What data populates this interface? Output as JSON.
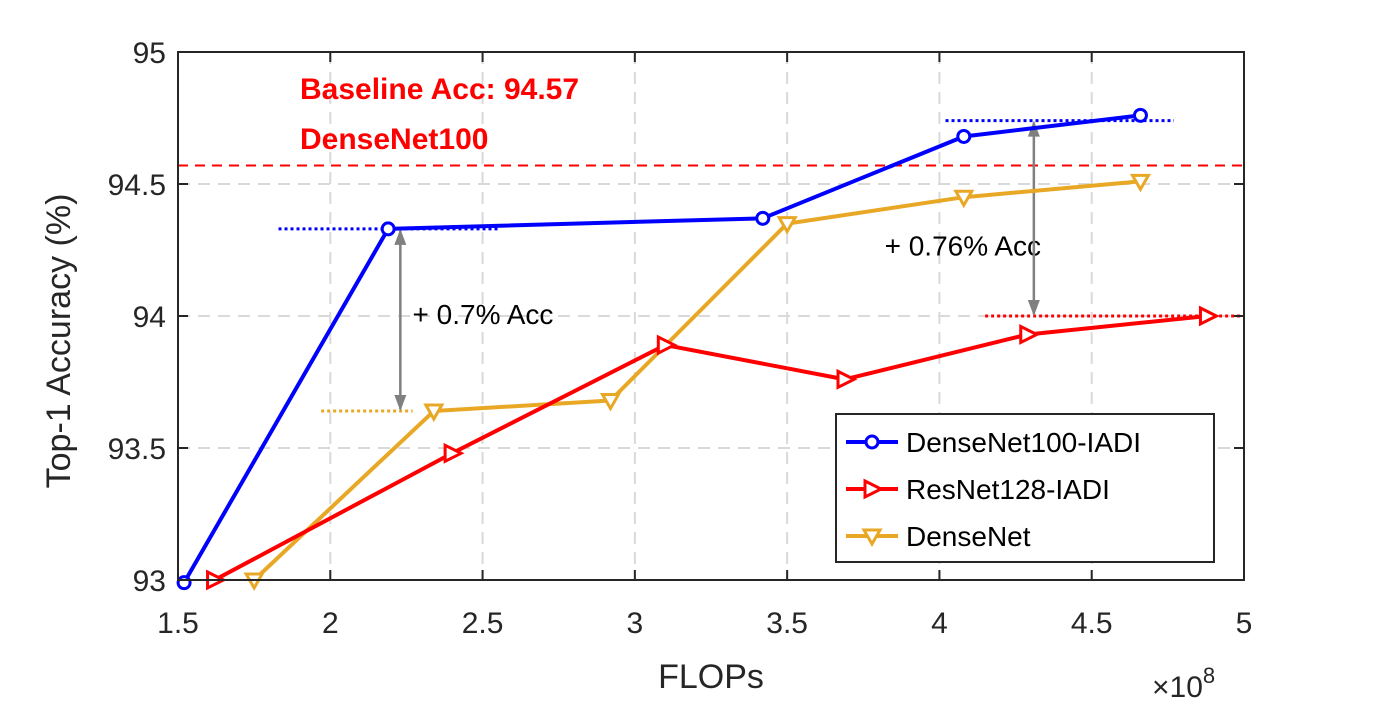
{
  "chart_data": {
    "type": "line",
    "xlabel": "FLOPs",
    "ylabel": "Top-1 Accuracy (%)",
    "x_multiplier_label": "×10",
    "x_multiplier_exponent": "8",
    "xlim": [
      1.5,
      5
    ],
    "ylim": [
      93,
      95
    ],
    "xticks": [
      "1.5",
      "2",
      "2.5",
      "3",
      "3.5",
      "4",
      "4.5",
      "5"
    ],
    "yticks": [
      "93",
      "93.5",
      "94",
      "94.5",
      "95"
    ],
    "xtick_values": [
      1.5,
      2,
      2.5,
      3,
      3.5,
      4,
      4.5,
      5
    ],
    "ytick_values": [
      93,
      93.5,
      94,
      94.5,
      95
    ],
    "grid": true,
    "legend_position": "bottom-right",
    "series": [
      {
        "name": "DenseNet100-IADI",
        "color": "#0000ff",
        "marker": "circle",
        "x": [
          1.52,
          2.19,
          3.42,
          4.08,
          4.66
        ],
        "y": [
          92.99,
          94.33,
          94.37,
          94.68,
          94.76
        ]
      },
      {
        "name": "ResNet128-IADI",
        "color": "#ff0000",
        "marker": "triangle-right",
        "x": [
          1.62,
          2.4,
          3.1,
          3.69,
          4.29,
          4.88
        ],
        "y": [
          93.0,
          93.48,
          93.89,
          93.76,
          93.93,
          94.0
        ]
      },
      {
        "name": "DenseNet",
        "color": "#e8a825",
        "marker": "triangle-down",
        "x": [
          1.75,
          2.34,
          2.92,
          3.5,
          4.08,
          4.66
        ],
        "y": [
          93.0,
          93.64,
          93.68,
          94.35,
          94.45,
          94.51
        ]
      }
    ],
    "baseline": {
      "value": 94.57,
      "color": "#ff0000",
      "label_line1": "Baseline Acc: 94.57",
      "label_line2": "DenseNet100"
    },
    "annotations": [
      {
        "text": "+ 0.7% Acc",
        "arrow_x": 2.23,
        "y_from": 93.64,
        "y_to": 94.33,
        "text_x": 2.27,
        "text_y": 93.97,
        "dotted_top": {
          "x1": 1.83,
          "x2": 2.55,
          "y": 94.33,
          "color": "#0000ff"
        },
        "dotted_bottom": {
          "x1": 1.97,
          "x2": 2.27,
          "y": 93.64,
          "color": "#e8a825"
        }
      },
      {
        "text": "+ 0.76% Acc",
        "arrow_x": 4.31,
        "y_from": 94.0,
        "y_to": 94.74,
        "text_x": 3.82,
        "text_y": 94.23,
        "dotted_top": {
          "x1": 4.02,
          "x2": 4.77,
          "y": 94.74,
          "color": "#0000ff"
        },
        "dotted_bottom": {
          "x1": 4.15,
          "x2": 5.0,
          "y": 94.0,
          "color": "#ff0000"
        }
      }
    ]
  }
}
